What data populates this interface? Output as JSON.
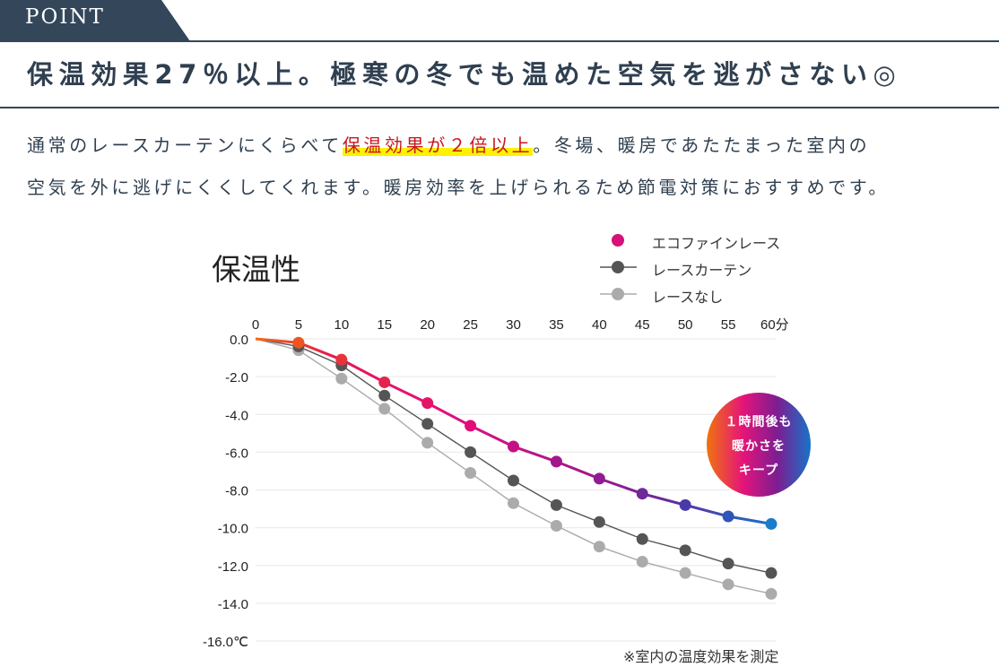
{
  "header": {
    "point_label": "POINT",
    "headline": "保温効果27％以上。極寒の冬でも温めた空気を逃がさない◎",
    "colors": {
      "tab": "#33465a",
      "text": "#2f3f50",
      "highlight_text": "#c8151b",
      "highlight_marker": "#fff200"
    }
  },
  "body": {
    "line1_before": "通常のレースカーテンにくらべて",
    "line1_highlight": "保温効果が２倍以上",
    "line1_after": "。冬場、暖房であたたまった室内の",
    "line2": "空気を外に逃げにくくしてくれます。暖房効率を上げられるため節電対策におすすめです。"
  },
  "badge": {
    "line1": "１時間後も",
    "line2": "暖かさを",
    "line3": "キープ"
  },
  "chart_data": {
    "type": "line",
    "title": "保温性",
    "xlabel": "分",
    "ylabel": "℃",
    "x": [
      0,
      5,
      10,
      15,
      20,
      25,
      30,
      35,
      40,
      45,
      50,
      55,
      60
    ],
    "x_tick_labels": [
      "0",
      "5",
      "10",
      "15",
      "20",
      "25",
      "30",
      "35",
      "40",
      "45",
      "50",
      "55",
      "60分"
    ],
    "y_ticks": [
      0,
      -2,
      -4,
      -6,
      -8,
      -10,
      -12,
      -14,
      -16
    ],
    "y_tick_labels": [
      "0.0",
      "-2.0",
      "-4.0",
      "-6.0",
      "-8.0",
      "-10.0",
      "-12.0",
      "-14.0",
      "-16.0℃"
    ],
    "ylim": [
      -16,
      0
    ],
    "xlim": [
      0,
      60
    ],
    "x_axis_position": "top",
    "grid": true,
    "legend_position": "top-right",
    "series": [
      {
        "name": "エコファインレース",
        "values": [
          0,
          -0.2,
          -1.1,
          -2.3,
          -3.4,
          -4.6,
          -5.7,
          -6.5,
          -7.4,
          -8.2,
          -8.8,
          -9.4,
          -9.8
        ],
        "gradient": [
          "#f26a10",
          "#e8174f",
          "#e40f7f",
          "#a3168c",
          "#5b2f9e",
          "#1a72c9"
        ]
      },
      {
        "name": "レースカーテン",
        "values": [
          0,
          -0.4,
          -1.4,
          -3.0,
          -4.5,
          -6.0,
          -7.5,
          -8.8,
          -9.7,
          -10.6,
          -11.2,
          -11.9,
          -12.4
        ],
        "color": "#555555"
      },
      {
        "name": "レースなし",
        "values": [
          0,
          -0.6,
          -2.1,
          -3.7,
          -5.5,
          -7.1,
          -8.7,
          -9.9,
          -11.0,
          -11.8,
          -12.4,
          -13.0,
          -13.5
        ],
        "color": "#ababab"
      }
    ],
    "annotation": "※室内の温度効果を測定"
  }
}
